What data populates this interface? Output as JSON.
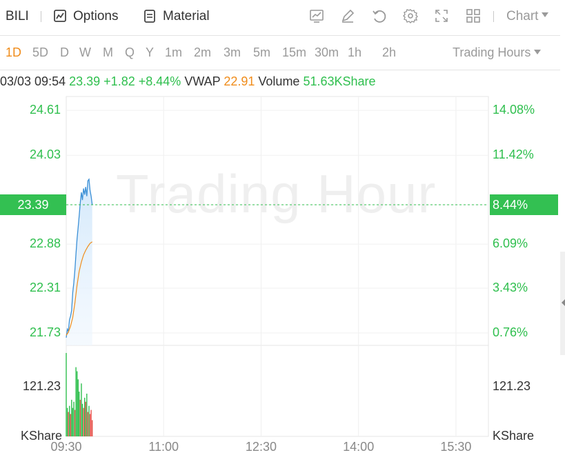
{
  "toolbar": {
    "ticker": "BILI",
    "options_label": "Options",
    "material_label": "Material",
    "chart_label": "Chart",
    "icons": [
      "chart-icon",
      "pencil-icon",
      "undo-icon",
      "gear-icon",
      "fullscreen-icon",
      "grid-icon"
    ]
  },
  "periods": [
    "1D",
    "5D",
    "D",
    "W",
    "M",
    "Q",
    "Y",
    "1m",
    "2m",
    "3m",
    "5m",
    "15m",
    "30m",
    "1h",
    "2h"
  ],
  "active_period": "1D",
  "session_dropdown": "Trading Hours",
  "info": {
    "datetime": "03/03 09:54",
    "price": "23.39",
    "change": "+1.82",
    "change_pct": "+8.44%",
    "vwap_label": "VWAP",
    "vwap": "22.91",
    "volume_label": "Volume",
    "volume": "51.63KShare"
  },
  "watermark": "Trading Hour",
  "colors": {
    "up_green": "#2fbf4e",
    "price_line": "#3a8fd6",
    "vwap_line": "#f08c1a",
    "volume_red": "#e5534b",
    "tag_bg": "#33c052"
  },
  "chart_data": {
    "type": "line",
    "price_axis_left": [
      "24.61",
      "24.03",
      "23.39",
      "22.88",
      "22.31",
      "21.73"
    ],
    "price_axis_right": [
      "14.08%",
      "11.42%",
      "8.44%",
      "6.09%",
      "3.43%",
      "0.76%"
    ],
    "current_price_tag": "23.39",
    "current_pct_tag": "8.44%",
    "x_tick_labels": [
      "09:30",
      "11:00",
      "12:30",
      "14:00",
      "15:30"
    ],
    "ylim": [
      21.57,
      24.79
    ],
    "series": [
      {
        "name": "Price",
        "x": [
          "09:30",
          "09:31",
          "09:32",
          "09:33",
          "09:34",
          "09:35",
          "09:36",
          "09:37",
          "09:38",
          "09:39",
          "09:40",
          "09:41",
          "09:42",
          "09:43",
          "09:44",
          "09:45",
          "09:46",
          "09:47",
          "09:48",
          "09:49",
          "09:50",
          "09:51",
          "09:52",
          "09:53",
          "09:54"
        ],
        "values": [
          21.67,
          21.78,
          21.75,
          21.9,
          21.95,
          22.02,
          22.25,
          22.38,
          22.55,
          22.75,
          22.95,
          23.1,
          23.25,
          23.42,
          23.55,
          23.45,
          23.6,
          23.52,
          23.62,
          23.5,
          23.7,
          23.72,
          23.58,
          23.5,
          23.39
        ]
      },
      {
        "name": "VWAP",
        "x": [
          "09:30",
          "09:32",
          "09:34",
          "09:36",
          "09:38",
          "09:40",
          "09:42",
          "09:44",
          "09:46",
          "09:48",
          "09:50",
          "09:52",
          "09:54"
        ],
        "values": [
          21.7,
          21.74,
          21.82,
          21.93,
          22.12,
          22.35,
          22.53,
          22.65,
          22.74,
          22.8,
          22.85,
          22.89,
          22.91
        ]
      }
    ],
    "volume": {
      "axis_left": [
        "121.23",
        "KShare"
      ],
      "axis_right": [
        "121.23",
        "KShare"
      ],
      "ylim": [
        0,
        210
      ],
      "bars": [
        {
          "t": "09:30",
          "v": 205,
          "c": "up"
        },
        {
          "t": "09:31",
          "v": 70,
          "c": "up"
        },
        {
          "t": "09:32",
          "v": 60,
          "c": "down"
        },
        {
          "t": "09:33",
          "v": 75,
          "c": "up"
        },
        {
          "t": "09:34",
          "v": 55,
          "c": "down"
        },
        {
          "t": "09:35",
          "v": 90,
          "c": "up"
        },
        {
          "t": "09:36",
          "v": 70,
          "c": "up"
        },
        {
          "t": "09:37",
          "v": 85,
          "c": "up"
        },
        {
          "t": "09:38",
          "v": 65,
          "c": "down"
        },
        {
          "t": "09:39",
          "v": 170,
          "c": "up"
        },
        {
          "t": "09:40",
          "v": 160,
          "c": "up"
        },
        {
          "t": "09:41",
          "v": 140,
          "c": "up"
        },
        {
          "t": "09:42",
          "v": 110,
          "c": "up"
        },
        {
          "t": "09:43",
          "v": 90,
          "c": "down"
        },
        {
          "t": "09:44",
          "v": 130,
          "c": "up"
        },
        {
          "t": "09:45",
          "v": 80,
          "c": "up"
        },
        {
          "t": "09:46",
          "v": 70,
          "c": "down"
        },
        {
          "t": "09:47",
          "v": 95,
          "c": "up"
        },
        {
          "t": "09:48",
          "v": 85,
          "c": "down"
        },
        {
          "t": "09:49",
          "v": 105,
          "c": "up"
        },
        {
          "t": "09:50",
          "v": 60,
          "c": "down"
        },
        {
          "t": "09:51",
          "v": 75,
          "c": "up"
        },
        {
          "t": "09:52",
          "v": 55,
          "c": "down"
        },
        {
          "t": "09:53",
          "v": 65,
          "c": "down"
        },
        {
          "t": "09:54",
          "v": 40,
          "c": "down"
        }
      ]
    }
  }
}
